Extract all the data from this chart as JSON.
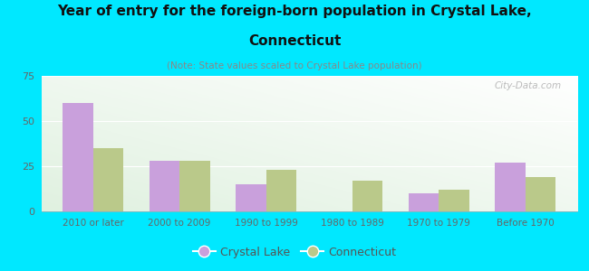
{
  "title_line1": "Year of entry for the foreign-born population in Crystal Lake,",
  "title_line2": "Connecticut",
  "subtitle": "(Note: State values scaled to Crystal Lake population)",
  "categories": [
    "2010 or later",
    "2000 to 2009",
    "1990 to 1999",
    "1980 to 1989",
    "1970 to 1979",
    "Before 1970"
  ],
  "crystal_lake": [
    60,
    28,
    15,
    0,
    10,
    27
  ],
  "connecticut": [
    35,
    28,
    23,
    17,
    12,
    19
  ],
  "crystal_lake_color": "#c9a0dc",
  "connecticut_color": "#bac98a",
  "background_color": "#00e8ff",
  "ylim": [
    0,
    75
  ],
  "yticks": [
    0,
    25,
    50,
    75
  ],
  "bar_width": 0.35,
  "legend_labels": [
    "Crystal Lake",
    "Connecticut"
  ],
  "watermark": "City-Data.com",
  "title_fontsize": 11,
  "subtitle_fontsize": 7.5,
  "tick_fontsize": 7.5,
  "legend_fontsize": 9
}
